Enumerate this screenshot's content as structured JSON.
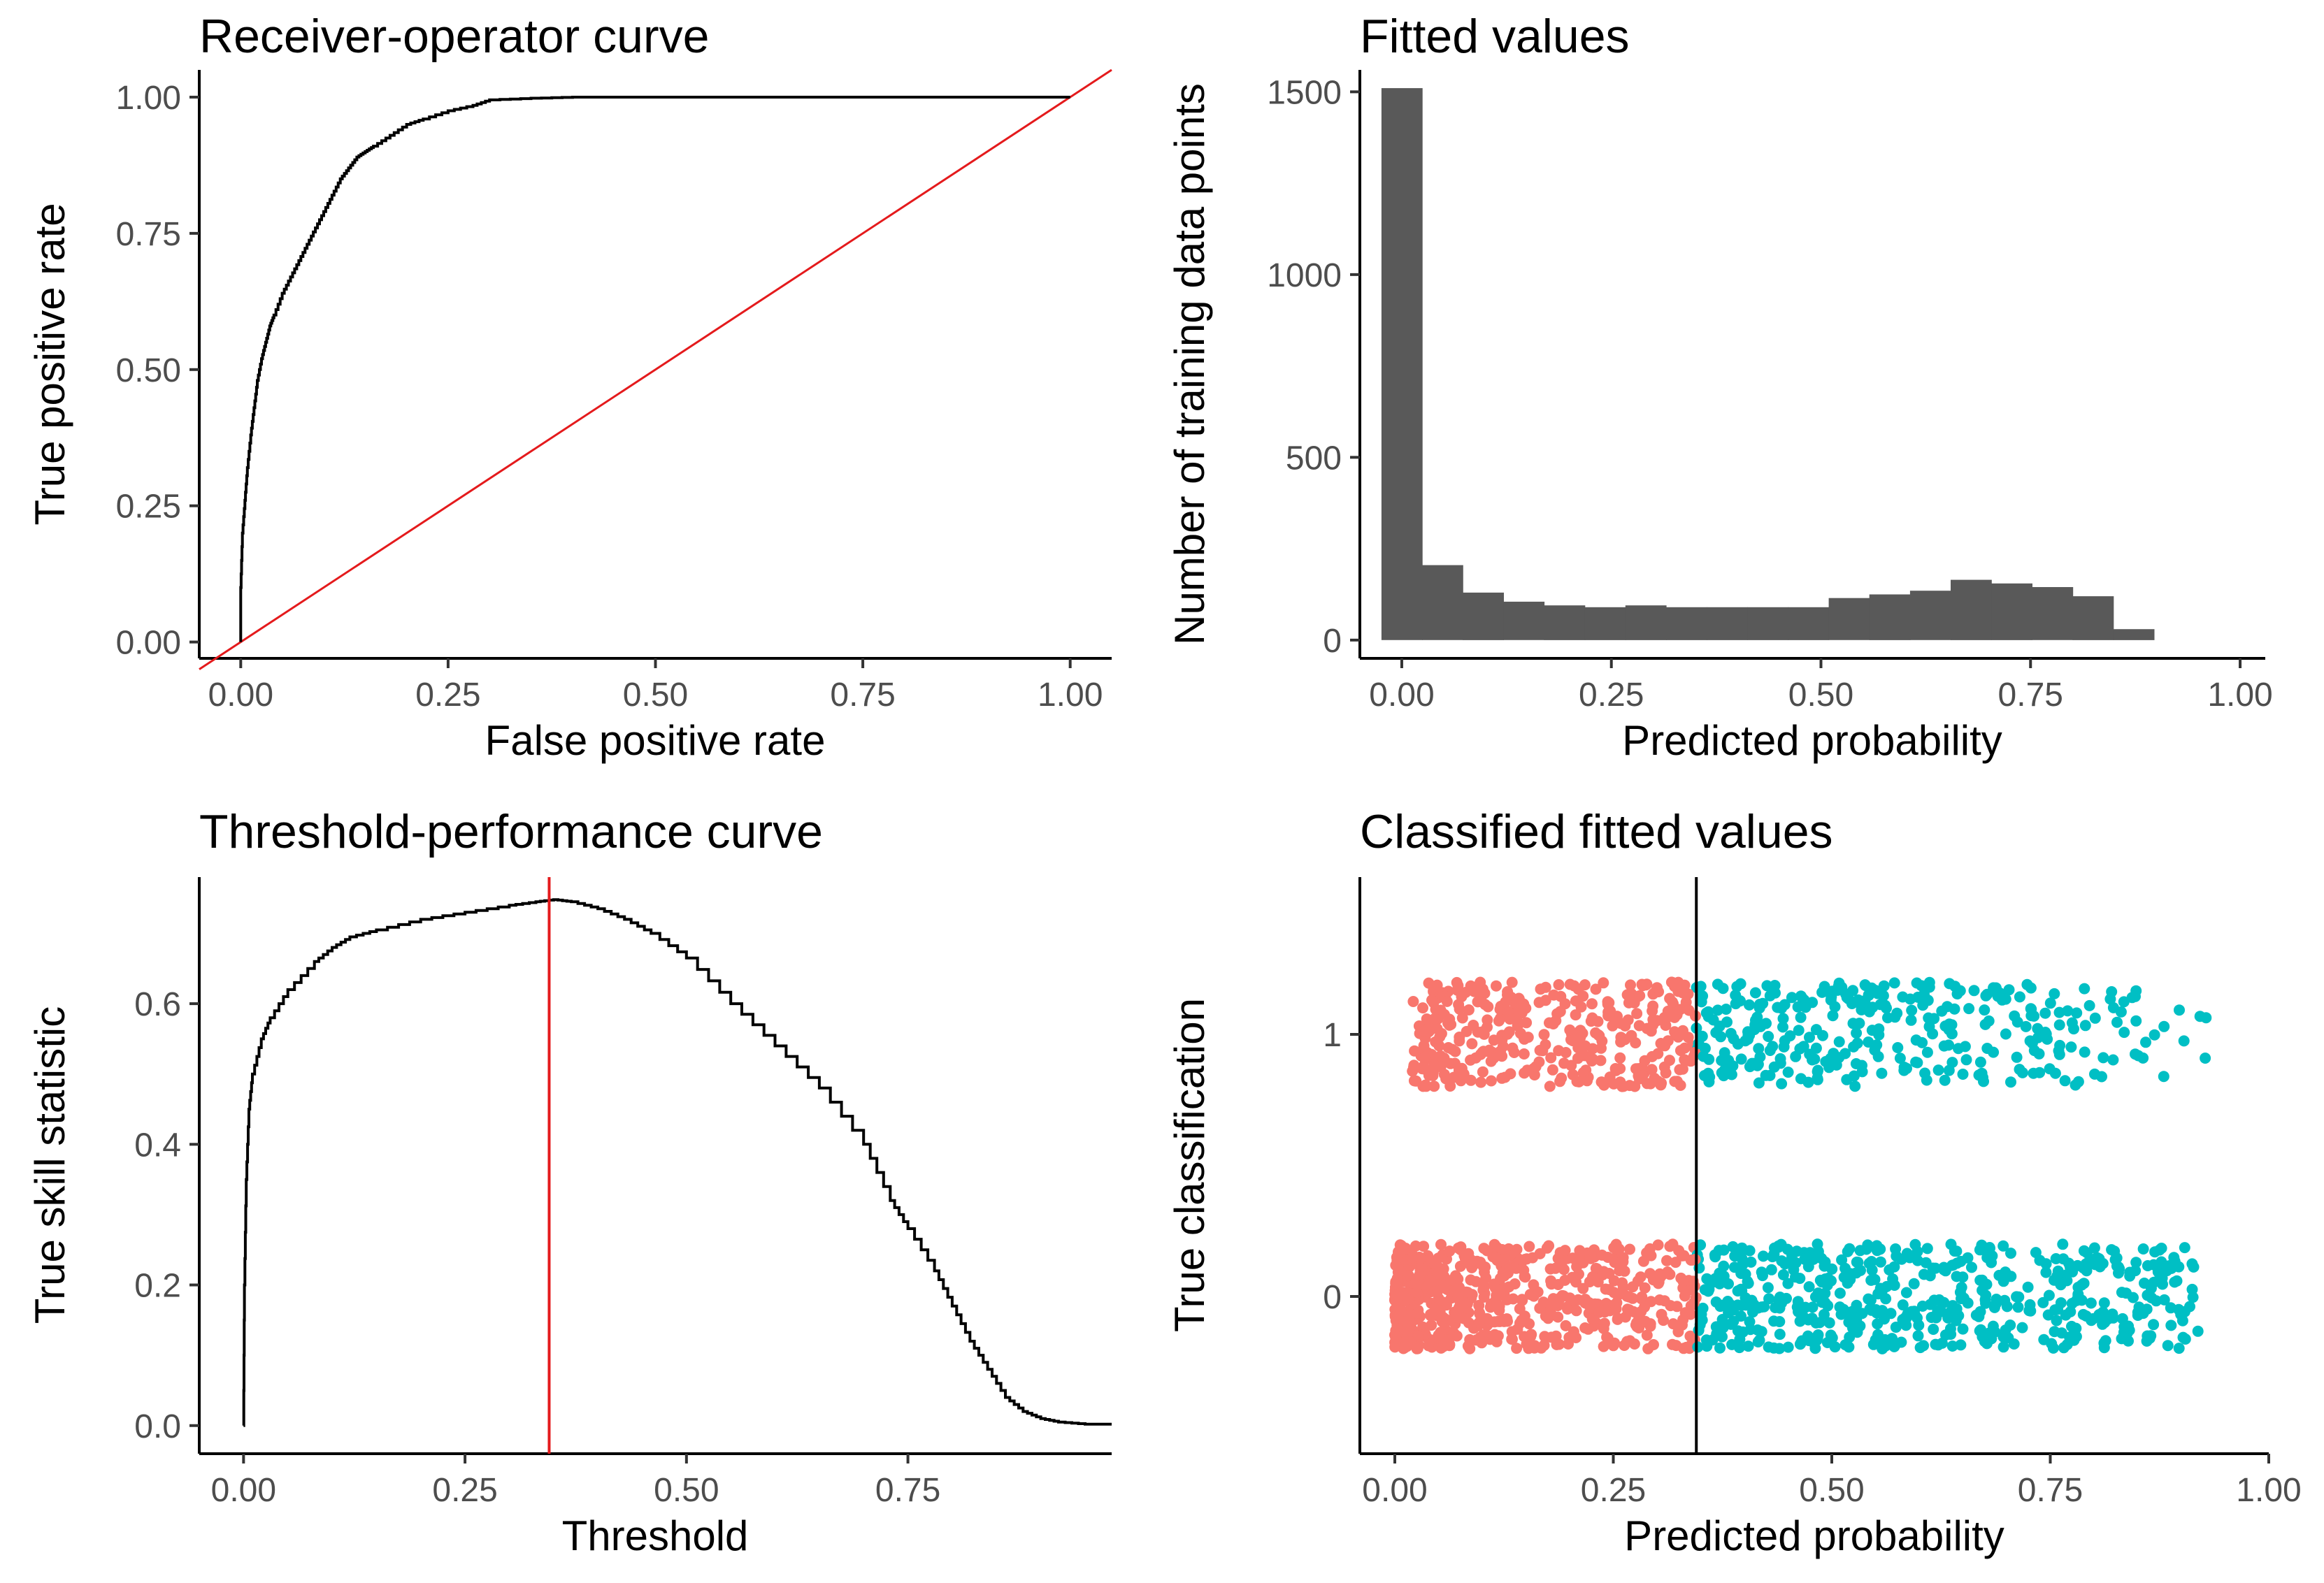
{
  "colors": {
    "curve": "#000000",
    "reference_line": "#e41a1c",
    "histogram_bar": "#595959",
    "class_red": "#f8766d",
    "class_teal": "#00bfc4"
  },
  "chart_data": [
    {
      "id": "roc",
      "type": "line",
      "title": "Receiver-operator curve",
      "xlabel": "False positive rate",
      "ylabel": "True positive rate",
      "xlim": [
        -0.05,
        1.05
      ],
      "ylim": [
        -0.03,
        1.05
      ],
      "xticks": [
        0,
        0.25,
        0.5,
        0.75,
        1
      ],
      "xtick_labels": [
        "0.00",
        "0.25",
        "0.50",
        "0.75",
        "1.00"
      ],
      "yticks": [
        0,
        0.25,
        0.5,
        0.75,
        1
      ],
      "ytick_labels": [
        "0.00",
        "0.25",
        "0.50",
        "0.75",
        "1.00"
      ],
      "grid": false,
      "series": [
        {
          "name": "ROC",
          "x": [
            0,
            0,
            0.002,
            0.005,
            0.008,
            0.012,
            0.016,
            0.02,
            0.025,
            0.03,
            0.035,
            0.04,
            0.05,
            0.06,
            0.07,
            0.08,
            0.09,
            0.1,
            0.11,
            0.12,
            0.13,
            0.14,
            0.15,
            0.16,
            0.18,
            0.2,
            0.22,
            0.25,
            0.28,
            0.3,
            0.35,
            0.4,
            0.5,
            0.6,
            0.8,
            1.0
          ],
          "y": [
            0,
            0.1,
            0.2,
            0.26,
            0.32,
            0.38,
            0.43,
            0.48,
            0.52,
            0.55,
            0.58,
            0.6,
            0.64,
            0.67,
            0.7,
            0.73,
            0.76,
            0.79,
            0.82,
            0.85,
            0.87,
            0.89,
            0.9,
            0.91,
            0.93,
            0.95,
            0.96,
            0.975,
            0.985,
            0.995,
            0.998,
            1.0,
            1.0,
            1.0,
            1.0,
            1.0
          ]
        },
        {
          "name": "Random classifier",
          "x": [
            -0.05,
            1.05
          ],
          "y": [
            -0.05,
            1.05
          ]
        }
      ]
    },
    {
      "id": "fitted",
      "type": "bar",
      "title": "Fitted values",
      "xlabel": "Predicted probability",
      "ylabel": "Number of training data points",
      "xlim": [
        -0.05,
        1.03
      ],
      "ylim": [
        -50,
        1560
      ],
      "xticks": [
        0,
        0.25,
        0.5,
        0.75,
        1
      ],
      "xtick_labels": [
        "0.00",
        "0.25",
        "0.50",
        "0.75",
        "1.00"
      ],
      "yticks": [
        0,
        500,
        1000,
        1500
      ],
      "ytick_labels": [
        "0",
        "500",
        "1000",
        "1500"
      ],
      "grid": false,
      "bin_width": 0.0485,
      "bin_centers": [
        0,
        0.0485,
        0.097,
        0.1455,
        0.194,
        0.2425,
        0.291,
        0.3395,
        0.388,
        0.4365,
        0.485,
        0.5335,
        0.582,
        0.6305,
        0.679,
        0.7275,
        0.776,
        0.8245,
        0.873
      ],
      "counts": [
        1510,
        205,
        130,
        105,
        95,
        90,
        95,
        90,
        90,
        90,
        90,
        115,
        125,
        135,
        165,
        155,
        145,
        120,
        30
      ]
    },
    {
      "id": "tss",
      "type": "line",
      "title": "Threshold-performance curve",
      "xlabel": "Threshold",
      "ylabel": "True skill statistic",
      "xlim": [
        -0.05,
        0.98
      ],
      "ylim": [
        -0.04,
        0.78
      ],
      "xticks": [
        0,
        0.25,
        0.5,
        0.75
      ],
      "xtick_labels": [
        "0.00",
        "0.25",
        "0.50",
        "0.75"
      ],
      "yticks": [
        0,
        0.2,
        0.4,
        0.6
      ],
      "ytick_labels": [
        "0.0",
        "0.2",
        "0.4",
        "0.6"
      ],
      "grid": false,
      "threshold_line": 0.345,
      "series": [
        {
          "name": "TSS",
          "x": [
            0,
            0.001,
            0.003,
            0.006,
            0.01,
            0.02,
            0.03,
            0.05,
            0.08,
            0.1,
            0.12,
            0.15,
            0.2,
            0.25,
            0.3,
            0.33,
            0.35,
            0.37,
            0.4,
            0.43,
            0.46,
            0.5,
            0.55,
            0.6,
            0.65,
            0.7,
            0.73,
            0.75,
            0.78,
            0.8,
            0.82,
            0.84,
            0.86,
            0.88,
            0.9,
            0.92,
            0.95,
            0.98
          ],
          "y": [
            0,
            0.2,
            0.35,
            0.45,
            0.5,
            0.55,
            0.58,
            0.62,
            0.66,
            0.68,
            0.695,
            0.705,
            0.72,
            0.73,
            0.74,
            0.745,
            0.748,
            0.745,
            0.735,
            0.72,
            0.7,
            0.665,
            0.6,
            0.54,
            0.48,
            0.4,
            0.32,
            0.28,
            0.22,
            0.17,
            0.12,
            0.08,
            0.04,
            0.02,
            0.01,
            0.005,
            0.002,
            0.002
          ]
        }
      ]
    },
    {
      "id": "classified",
      "type": "scatter",
      "title": "Classified fitted values",
      "xlabel": "Predicted probability",
      "ylabel": "True classification",
      "xlim": [
        -0.04,
        1.0
      ],
      "ylim": [
        -0.6,
        1.6
      ],
      "xticks": [
        0,
        0.25,
        0.5,
        0.75,
        1
      ],
      "xtick_labels": [
        "0.00",
        "0.25",
        "0.50",
        "0.75",
        "1.00"
      ],
      "yticks": [
        0,
        1
      ],
      "ytick_labels": [
        "0",
        "1"
      ],
      "grid": false,
      "threshold_line": 0.345,
      "jitter_height": 0.2,
      "groups": [
        {
          "class": 0,
          "x_min": 0,
          "x_max": 0.92,
          "n": 1150,
          "dense_below": 0.345,
          "left_skew": 1.6
        },
        {
          "class": 1,
          "x_min": 0.02,
          "x_max": 0.95,
          "n": 700,
          "dense_below": 0.345,
          "left_skew": 0.6
        }
      ]
    }
  ]
}
